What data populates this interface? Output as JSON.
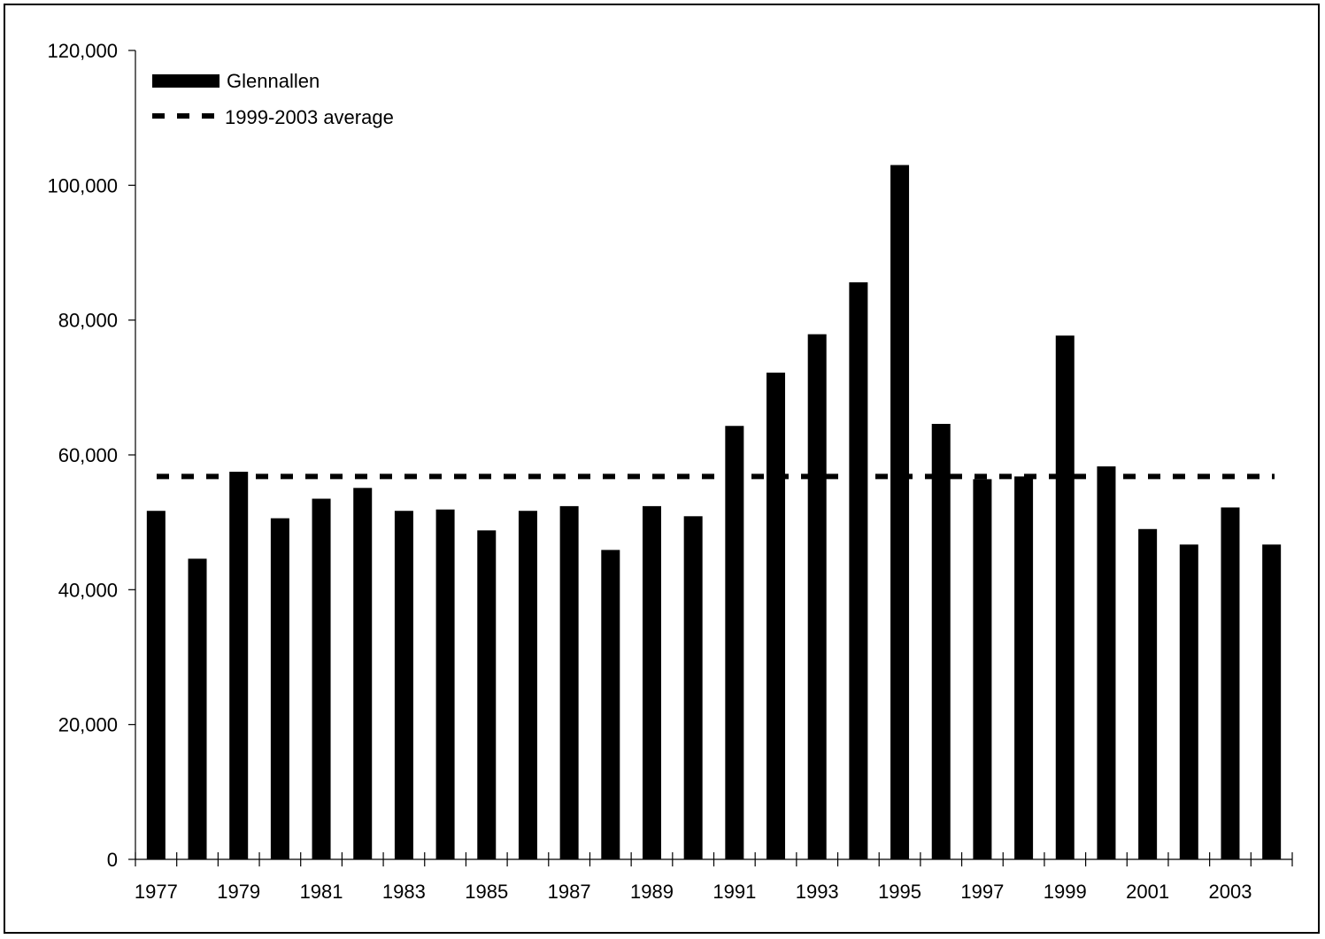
{
  "chart_data": {
    "type": "bar",
    "title": "",
    "xlabel": "",
    "ylabel": "",
    "categories": [
      "1977",
      "1978",
      "1979",
      "1980",
      "1981",
      "1982",
      "1983",
      "1984",
      "1985",
      "1986",
      "1987",
      "1988",
      "1989",
      "1990",
      "1991",
      "1992",
      "1993",
      "1994",
      "1995",
      "1996",
      "1997",
      "1998",
      "1999",
      "2000",
      "2001",
      "2002",
      "2003",
      "2004"
    ],
    "x_tick_labels": [
      "1977",
      "1979",
      "1981",
      "1983",
      "1985",
      "1987",
      "1989",
      "1991",
      "1993",
      "1995",
      "1997",
      "1999",
      "2001",
      "2003"
    ],
    "y_tick_labels": [
      "0",
      "20,000",
      "40,000",
      "60,000",
      "80,000",
      "100,000",
      "120,000"
    ],
    "ylim": [
      0,
      120000
    ],
    "y_ticks": [
      0,
      20000,
      40000,
      60000,
      80000,
      100000,
      120000
    ],
    "series": [
      {
        "name": "Glennallen",
        "color": "#000000",
        "values": [
          51700,
          44600,
          57500,
          50600,
          53500,
          55100,
          51700,
          51900,
          48800,
          51700,
          52400,
          45900,
          52400,
          50900,
          64300,
          72200,
          77900,
          85600,
          103000,
          64600,
          56400,
          56800,
          77700,
          58300,
          49000,
          46700,
          52200,
          46700
        ]
      }
    ],
    "reference_lines": [
      {
        "name": "1999-2003 average",
        "style": "dashed",
        "color": "#000000",
        "value": 56800
      }
    ],
    "grid": false,
    "legend_position": "top-left"
  }
}
